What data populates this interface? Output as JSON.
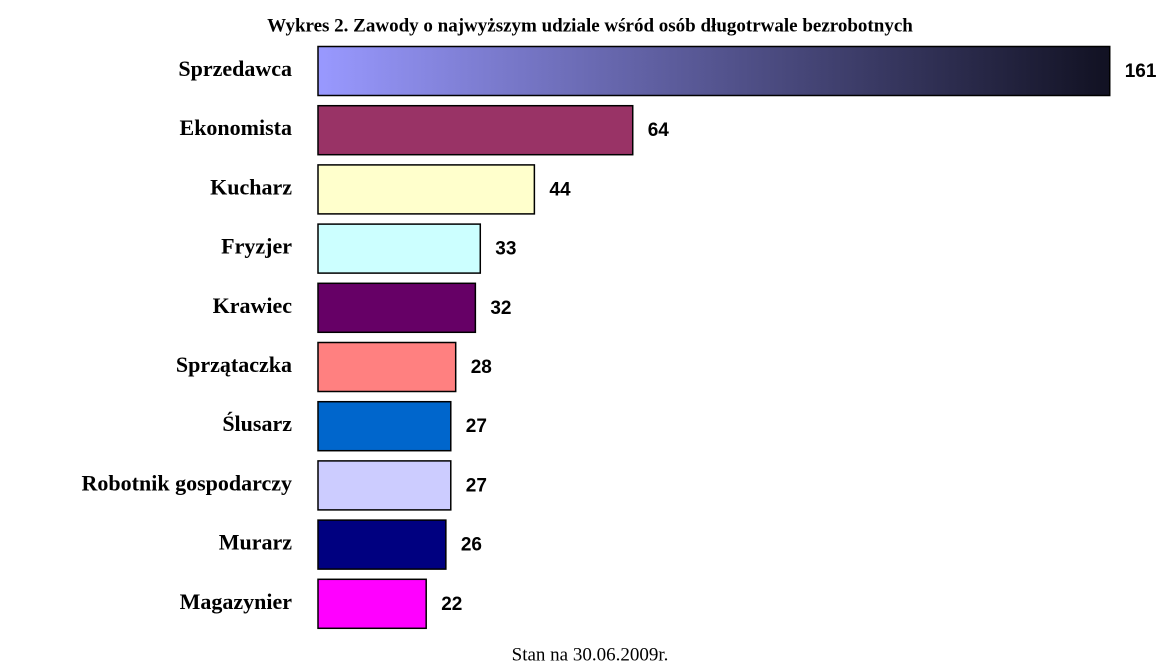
{
  "chart_data": {
    "type": "hbar",
    "title": "Wykres 2. Zawody o najwyższym udziale wśród osób długotrwale bezrobotnych",
    "footnote": "Stan na 30.06.2009r.",
    "categories": [
      "Sprzedawca",
      "Ekonomista",
      "Kucharz",
      "Fryzjer",
      "Krawiec",
      "Sprzątaczka",
      "Ślusarz",
      "Robotnik gospodarczy",
      "Murarz",
      "Magazynier"
    ],
    "values": [
      161,
      64,
      44,
      33,
      32,
      28,
      27,
      27,
      26,
      22
    ],
    "colors": [
      {
        "from": "#9999ff",
        "to": "#111122"
      },
      "#993366",
      "#ffffcc",
      "#ccffff",
      "#660066",
      "#ff8080",
      "#0066cc",
      "#ccccff",
      "#000080",
      "#ff00ff"
    ],
    "xlim": [
      0,
      170
    ]
  }
}
